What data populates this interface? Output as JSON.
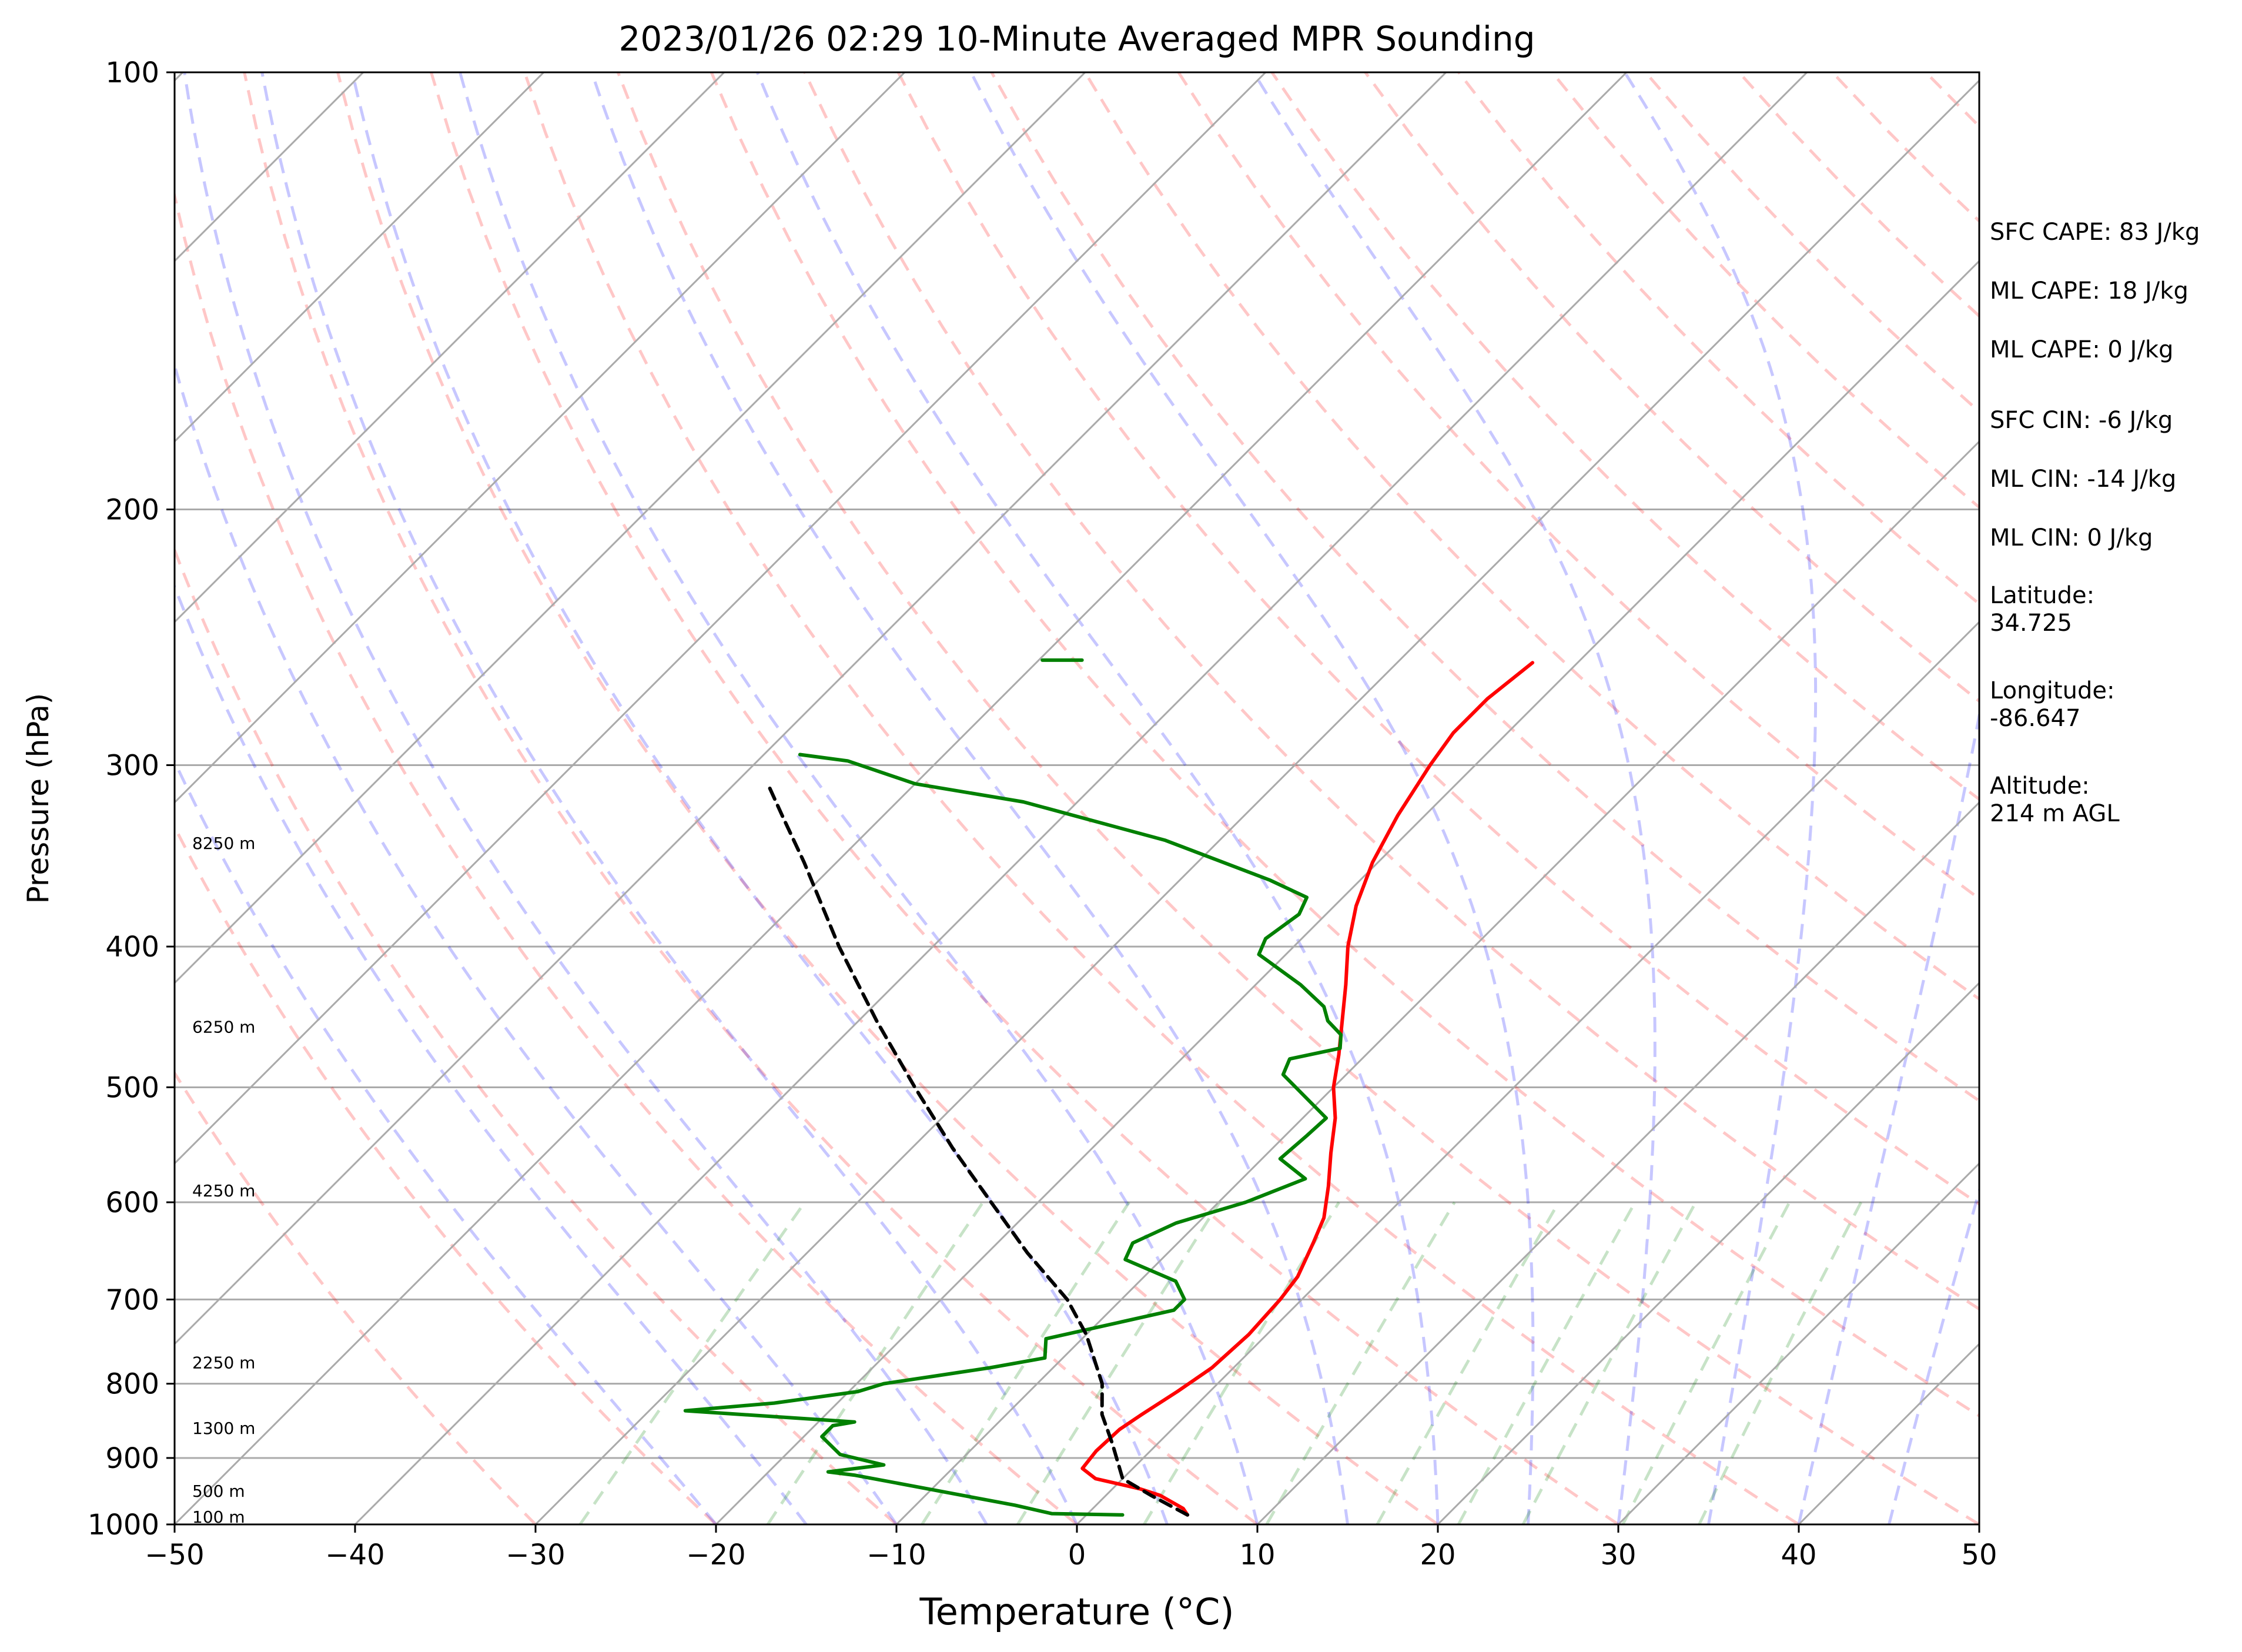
{
  "chart_data": {
    "type": "line",
    "title": "2023/01/26 02:29 10-Minute Averaged MPR Sounding",
    "xlabel": "Temperature (°C)",
    "ylabel": "Pressure (hPa)",
    "xlim": [
      -50,
      50
    ],
    "ylim": [
      1000,
      100
    ],
    "y_scale": "log",
    "skew": true,
    "x_ticks": [
      "−50",
      "−40",
      "−30",
      "−20",
      "−10",
      "0",
      "10",
      "20",
      "30",
      "40",
      "50"
    ],
    "y_ticks": [
      "100",
      "200",
      "300",
      "400",
      "500",
      "600",
      "700",
      "800",
      "900",
      "1000"
    ],
    "grid": true,
    "height_labels": [
      "8250 m",
      "6250 m",
      "4250 m",
      "2250 m",
      "1300 m",
      "500 m",
      "100 m"
    ],
    "series": [
      {
        "kind": "temperature",
        "color": "#ff0000",
        "points": [
          [
            5.6,
            985
          ],
          [
            5.0,
            975
          ],
          [
            3.0,
            955
          ],
          [
            1.5,
            945
          ],
          [
            -1.5,
            930
          ],
          [
            -2.8,
            915
          ],
          [
            -3.0,
            890
          ],
          [
            -2.9,
            860
          ],
          [
            -2.5,
            840
          ],
          [
            -1.8,
            810
          ],
          [
            -1.2,
            780
          ],
          [
            -1.0,
            740
          ],
          [
            -1.2,
            700
          ],
          [
            -1.5,
            675
          ],
          [
            -2.5,
            640
          ],
          [
            -3.3,
            615
          ],
          [
            -4.8,
            585
          ],
          [
            -6.5,
            555
          ],
          [
            -8.2,
            525
          ],
          [
            -10.0,
            500
          ],
          [
            -11.5,
            475
          ],
          [
            -13.2,
            450
          ],
          [
            -15.0,
            425
          ],
          [
            -17.0,
            400
          ],
          [
            -18.8,
            375
          ],
          [
            -20.3,
            350
          ],
          [
            -21.5,
            325
          ],
          [
            -22.5,
            300
          ],
          [
            -23.0,
            285
          ],
          [
            -23.0,
            270
          ],
          [
            -22.5,
            255
          ]
        ]
      },
      {
        "kind": "dewpoint",
        "color": "#008000",
        "points": [
          [
            2.0,
            985
          ],
          [
            -2.0,
            983
          ],
          [
            -4.5,
            970
          ],
          [
            -15.0,
            925
          ],
          [
            -16.7,
            920
          ],
          [
            -14.0,
            910
          ],
          [
            -17.0,
            895
          ],
          [
            -19.0,
            870
          ],
          [
            -19.0,
            855
          ],
          [
            -18.0,
            850
          ],
          [
            -28.0,
            835
          ],
          [
            -23.5,
            825
          ],
          [
            -19.5,
            810
          ],
          [
            -18.5,
            800
          ],
          [
            -16.0,
            790
          ],
          [
            -13.5,
            780
          ],
          [
            -11.0,
            768
          ],
          [
            -12.0,
            745
          ],
          [
            -6.5,
            712
          ],
          [
            -6.5,
            700
          ],
          [
            -8.0,
            680
          ],
          [
            -12.0,
            657
          ],
          [
            -12.5,
            640
          ],
          [
            -11.2,
            620
          ],
          [
            -8.5,
            600
          ],
          [
            -6.5,
            578
          ],
          [
            -9.0,
            560
          ],
          [
            -8.8,
            540
          ],
          [
            -8.7,
            525
          ],
          [
            -13.5,
            490
          ],
          [
            -14.0,
            478
          ],
          [
            -11.8,
            470
          ],
          [
            -12.5,
            460
          ],
          [
            -14.0,
            450
          ],
          [
            -15.0,
            440
          ],
          [
            -17.5,
            425
          ],
          [
            -21.5,
            405
          ],
          [
            -22.0,
            395
          ],
          [
            -21.5,
            380
          ],
          [
            -22.0,
            370
          ],
          [
            -25.0,
            360
          ],
          [
            -33.0,
            338
          ],
          [
            -43.0,
            318
          ],
          [
            -50.0,
            309
          ],
          [
            -55.0,
            298
          ],
          [
            -58.0,
            295
          ]
        ]
      },
      {
        "kind": "dewpoint",
        "color": "#008000",
        "points": [
          [
            -49.8,
            254
          ],
          [
            -47.6,
            254
          ]
        ]
      },
      {
        "kind": "parcel",
        "color": "#000000",
        "points": [
          [
            5.6,
            985
          ],
          [
            2.5,
            955
          ],
          [
            0.0,
            930
          ],
          [
            -2.5,
            880
          ],
          [
            -4.7,
            840
          ],
          [
            -6.4,
            800
          ],
          [
            -10.0,
            740
          ],
          [
            -13.0,
            700
          ],
          [
            -17.8,
            650
          ],
          [
            -22.6,
            600
          ],
          [
            -27.8,
            550
          ],
          [
            -33.2,
            500
          ],
          [
            -39.0,
            450
          ],
          [
            -45.2,
            400
          ],
          [
            -51.8,
            350
          ],
          [
            -55.6,
            325
          ],
          [
            -58.0,
            310
          ]
        ]
      }
    ]
  },
  "stats": {
    "sfc_cape": "SFC CAPE: 83 J/kg",
    "ml_cape_1": "ML CAPE: 18 J/kg",
    "ml_cape_2": "ML CAPE: 0 J/kg",
    "sfc_cin": "SFC CIN: -6 J/kg",
    "ml_cin_1": "ML CIN: -14 J/kg",
    "ml_cin_2": "ML CIN: 0 J/kg",
    "latitude_label": "Latitude:",
    "latitude_value": "34.725",
    "longitude_label": "Longitude:",
    "longitude_value": "-86.647",
    "altitude_label": "Altitude:",
    "altitude_value": "214 m AGL"
  }
}
